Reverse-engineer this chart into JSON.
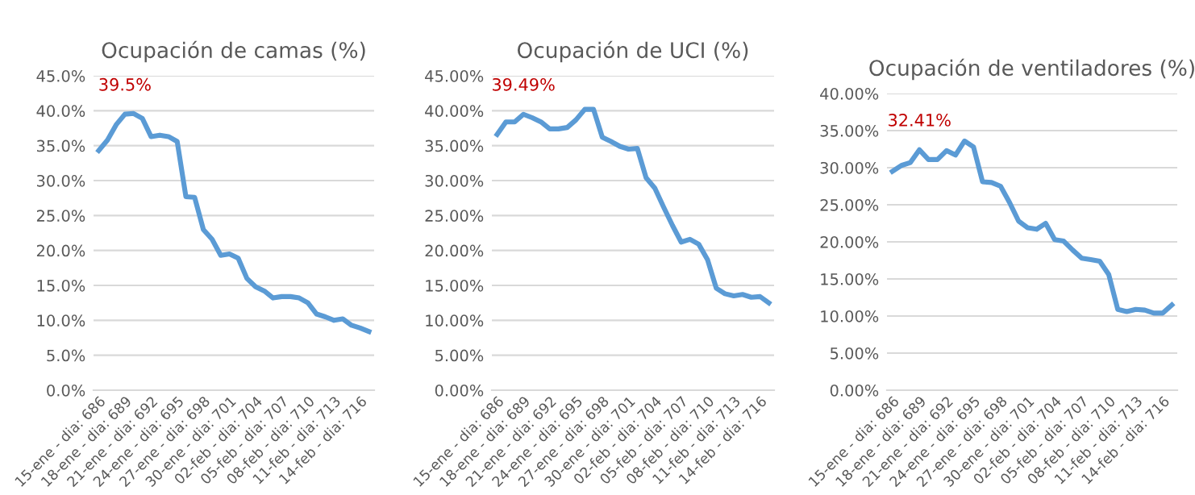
{
  "chart_data": [
    {
      "type": "line",
      "title": "Ocupación de camas (%)",
      "categories": [
        "15-ene - dia: 686",
        null,
        null,
        "18-ene - dia: 689",
        null,
        null,
        "21-ene - dia: 692",
        null,
        null,
        "24-ene - dia: 695",
        null,
        null,
        "27-ene - dia: 698",
        null,
        null,
        "30-ene - dia: 701",
        null,
        null,
        "02-feb - dia: 704",
        null,
        null,
        "05-feb - dia: 707",
        null,
        null,
        "08-feb - dia: 710",
        null,
        null,
        "11-feb - dia: 713",
        null,
        null,
        "14-feb - dia: 716",
        null
      ],
      "series": [
        {
          "color": "#5b9bd5",
          "values": [
            34.3,
            35.8,
            38.0,
            39.5,
            39.6,
            38.9,
            36.3,
            36.5,
            36.3,
            35.6,
            27.7,
            27.6,
            23.0,
            21.6,
            19.3,
            19.5,
            18.9,
            16.0,
            14.8,
            14.2,
            13.2,
            13.4,
            13.4,
            13.2,
            12.5,
            10.9,
            10.5,
            10.0,
            10.2,
            9.3,
            8.9,
            8.4
          ],
          "value_labels": [
            null,
            null,
            null,
            "39.5%",
            null,
            null,
            null,
            null,
            null,
            null,
            null,
            null,
            null,
            null,
            null,
            null,
            null,
            null,
            null,
            null,
            null,
            null,
            null,
            null,
            null,
            null,
            null,
            null,
            null,
            null,
            null,
            null
          ]
        }
      ],
      "ylim": [
        0,
        45
      ],
      "yticks": [
        {
          "value": 0,
          "label": "0.0%"
        },
        {
          "value": 5,
          "label": "5.0%"
        },
        {
          "value": 10,
          "label": "10.0%"
        },
        {
          "value": 15,
          "label": "15.0%"
        },
        {
          "value": 20,
          "label": "20.0%"
        },
        {
          "value": 25,
          "label": "25.0%"
        },
        {
          "value": 30,
          "label": "30.0%"
        },
        {
          "value": 35,
          "label": "35.0%"
        },
        {
          "value": 40,
          "label": "40.0%"
        },
        {
          "value": 45,
          "label": "45.0%"
        }
      ],
      "grid": "y",
      "marker": "none",
      "line_style": "solid"
    },
    {
      "type": "line",
      "title": "Ocupación de UCI (%)",
      "categories": [
        "15-ene - dia: 686",
        null,
        null,
        "18-ene - dia: 689",
        null,
        null,
        "21-ene - dia: 692",
        null,
        null,
        "24-ene - dia: 695",
        null,
        null,
        "27-ene - dia: 698",
        null,
        null,
        "30-ene - dia: 701",
        null,
        null,
        "02-feb - dia: 704",
        null,
        null,
        "05-feb - dia: 707",
        null,
        null,
        "08-feb - dia: 710",
        null,
        null,
        "11-feb - dia: 713",
        null,
        null,
        "14-feb - dia: 716",
        null
      ],
      "series": [
        {
          "color": "#5b9bd5",
          "values": [
            36.6,
            38.4,
            38.4,
            39.49,
            39.0,
            38.4,
            37.4,
            37.4,
            37.6,
            38.7,
            40.2,
            40.2,
            36.2,
            35.6,
            34.9,
            34.5,
            34.6,
            30.4,
            28.9,
            26.2,
            23.6,
            21.2,
            21.6,
            20.9,
            18.7,
            14.6,
            13.8,
            13.5,
            13.7,
            13.3,
            13.4,
            12.5
          ],
          "value_labels": [
            null,
            null,
            null,
            "39.49%",
            null,
            null,
            null,
            null,
            null,
            null,
            null,
            null,
            null,
            null,
            null,
            null,
            null,
            null,
            null,
            null,
            null,
            null,
            null,
            null,
            null,
            null,
            null,
            null,
            null,
            null,
            null,
            null
          ]
        }
      ],
      "ylim": [
        0,
        45
      ],
      "yticks": [
        {
          "value": 0,
          "label": "0.00%"
        },
        {
          "value": 5,
          "label": "5.00%"
        },
        {
          "value": 10,
          "label": "10.00%"
        },
        {
          "value": 15,
          "label": "15.00%"
        },
        {
          "value": 20,
          "label": "20.00%"
        },
        {
          "value": 25,
          "label": "25.00%"
        },
        {
          "value": 30,
          "label": "30.00%"
        },
        {
          "value": 35,
          "label": "35.00%"
        },
        {
          "value": 40,
          "label": "40.00%"
        },
        {
          "value": 45,
          "label": "45.00%"
        }
      ],
      "grid": "y",
      "marker": "none",
      "line_style": "solid"
    },
    {
      "type": "line",
      "title": "Ocupación de ventiladores (%)",
      "categories": [
        "15-ene - dia: 686",
        null,
        null,
        "18-ene - dia: 689",
        null,
        null,
        "21-ene - dia: 692",
        null,
        null,
        "24-ene - dia: 695",
        null,
        null,
        "27-ene - dia: 698",
        null,
        null,
        "30-ene - dia: 701",
        null,
        null,
        "02-feb - dia: 704",
        null,
        null,
        "05-feb - dia: 707",
        null,
        null,
        "08-feb - dia: 710",
        null,
        null,
        "11-feb - dia: 713",
        null,
        null,
        "14-feb - dia: 716",
        null
      ],
      "series": [
        {
          "color": "#5b9bd5",
          "values": [
            29.5,
            30.3,
            30.7,
            32.41,
            31.1,
            31.1,
            32.3,
            31.7,
            33.6,
            32.8,
            28.1,
            28.0,
            27.5,
            25.3,
            22.8,
            21.9,
            21.7,
            22.5,
            20.3,
            20.1,
            18.9,
            17.8,
            17.6,
            17.4,
            15.6,
            10.9,
            10.6,
            10.9,
            10.8,
            10.4,
            10.4,
            11.5
          ],
          "value_labels": [
            null,
            null,
            null,
            "32.41%",
            null,
            null,
            null,
            null,
            null,
            null,
            null,
            null,
            null,
            null,
            null,
            null,
            null,
            null,
            null,
            null,
            null,
            null,
            null,
            null,
            null,
            null,
            null,
            null,
            null,
            null,
            null,
            null
          ]
        }
      ],
      "ylim": [
        0,
        40
      ],
      "yticks": [
        {
          "value": 0,
          "label": "0.00%"
        },
        {
          "value": 5,
          "label": "5.00%"
        },
        {
          "value": 10,
          "label": "10.00%"
        },
        {
          "value": 15,
          "label": "15.00%"
        },
        {
          "value": 20,
          "label": "20.00%"
        },
        {
          "value": 25,
          "label": "25.00%"
        },
        {
          "value": 30,
          "label": "30.00%"
        },
        {
          "value": 35,
          "label": "35.00%"
        },
        {
          "value": 40,
          "label": "40.00%"
        }
      ],
      "grid": "y",
      "marker": "none",
      "line_style": "solid"
    }
  ]
}
